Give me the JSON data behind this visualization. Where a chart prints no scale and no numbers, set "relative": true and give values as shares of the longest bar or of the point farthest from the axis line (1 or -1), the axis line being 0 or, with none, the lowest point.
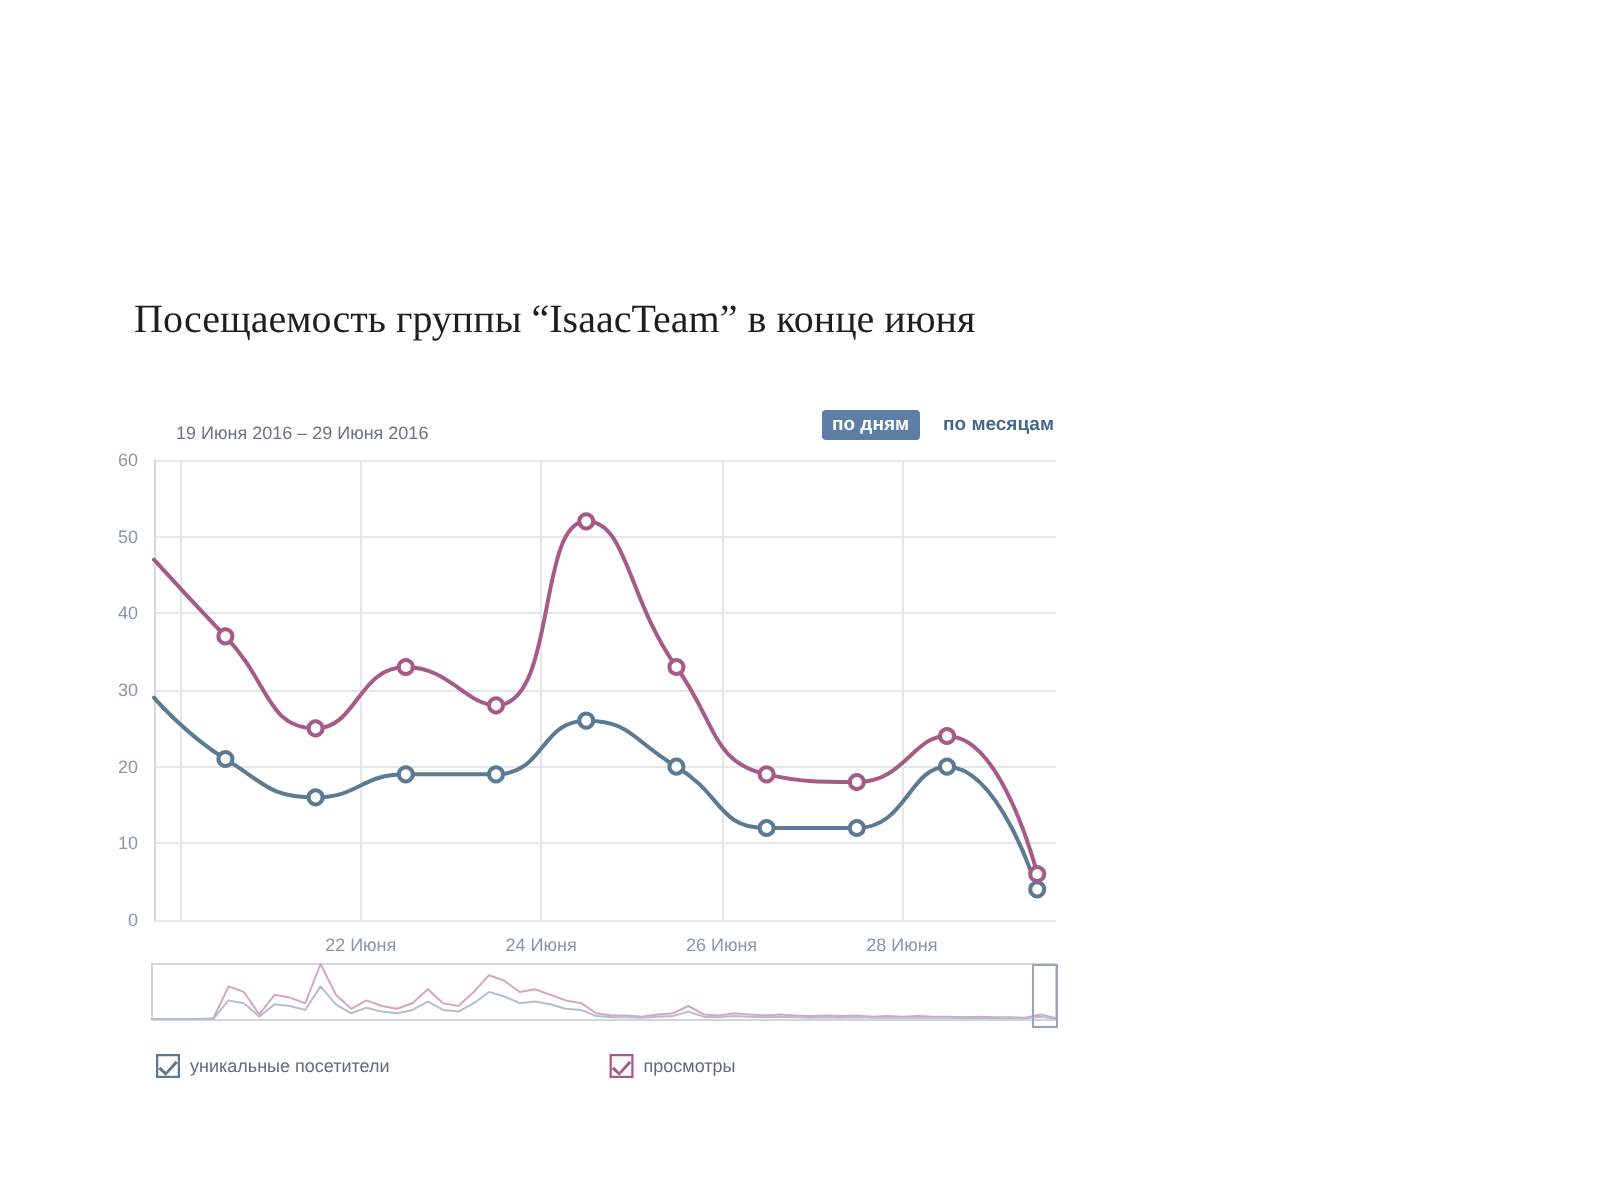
{
  "chart_data": [
    {
      "type": "line",
      "title": "Посещаемость группы “IsaacTeam” в конце июня",
      "subtitle": "19 Июня 2016 – 29 Июня 2016",
      "annotations": [
        "по дням",
        "по месяцам"
      ],
      "x": [
        "2016-06-19T17:00",
        "2016-06-20T12:00",
        "2016-06-21T12:00",
        "2016-06-22T12:00",
        "2016-06-23T12:00",
        "2016-06-24T12:00",
        "2016-06-25T12:00",
        "2016-06-26T12:00",
        "2016-06-27T12:00",
        "2016-06-28T12:00",
        "2016-06-29T12:00"
      ],
      "series": [
        {
          "name": "уникальные посетители",
          "color": "#5c7a92",
          "values": [
            29,
            21,
            16,
            19,
            19,
            26,
            20,
            12,
            12,
            20,
            4
          ]
        },
        {
          "name": "просмотры",
          "color": "#a65b87",
          "values": [
            47,
            37,
            25,
            33,
            28,
            52,
            33,
            19,
            18,
            24,
            6
          ]
        }
      ],
      "xlim": [
        "2016-06-19T17:00",
        "2016-06-29T17:00"
      ],
      "xticks": [
        {
          "value": "2016-06-20",
          "label": null
        },
        {
          "value": "2016-06-22",
          "label": "22 Июня"
        },
        {
          "value": "2016-06-24",
          "label": "24 Июня"
        },
        {
          "value": "2016-06-26",
          "label": "26 Июня"
        },
        {
          "value": "2016-06-28",
          "label": "28 Июня"
        }
      ],
      "ylim": [
        0,
        60
      ],
      "yticks": [
        0,
        10,
        20,
        30,
        40,
        50,
        60
      ],
      "grid": true,
      "legend": "bottom",
      "marker": "circle"
    },
    {
      "type": "line",
      "relative": true,
      "categories": [
        null,
        null,
        null,
        null,
        null,
        null,
        null,
        null,
        null,
        null,
        null,
        null,
        null,
        null,
        null,
        null,
        null,
        null,
        null,
        null,
        null,
        null,
        null,
        null,
        null,
        null,
        null,
        null,
        null,
        null,
        null,
        null,
        null,
        null,
        null,
        null,
        null,
        null,
        null,
        null,
        null,
        null,
        null,
        null,
        null,
        null,
        null,
        null,
        null,
        null,
        null,
        null,
        null,
        null,
        null,
        null,
        null,
        null,
        null,
        null
      ],
      "series": [
        {
          "color": "#d6a6be",
          "values": [
            0.02,
            0.02,
            0.02,
            0.02,
            0.03,
            0.6,
            0.5,
            0.1,
            0.45,
            0.4,
            0.3,
            1,
            0.45,
            0.2,
            0.35,
            0.25,
            0.2,
            0.3,
            0.55,
            0.3,
            0.25,
            0.5,
            0.8,
            0.7,
            0.5,
            0.55,
            0.45,
            0.35,
            0.3,
            0.12,
            0.08,
            0.08,
            0.06,
            0.1,
            0.12,
            0.25,
            0.1,
            0.08,
            0.12,
            0.1,
            0.08,
            0.1,
            0.08,
            0.07,
            0.08,
            0.07,
            0.08,
            0.06,
            0.07,
            0.06,
            0.07,
            0.06,
            0.06,
            0.05,
            0.06,
            0.05,
            0.05,
            0.04,
            0.1,
            0.03
          ]
        },
        {
          "color": "#b3bfca",
          "values": [
            0.02,
            0.02,
            0.02,
            0.02,
            0.02,
            0.35,
            0.3,
            0.06,
            0.28,
            0.25,
            0.18,
            0.6,
            0.28,
            0.12,
            0.22,
            0.15,
            0.12,
            0.18,
            0.33,
            0.18,
            0.15,
            0.3,
            0.5,
            0.42,
            0.3,
            0.33,
            0.28,
            0.2,
            0.18,
            0.07,
            0.05,
            0.05,
            0.04,
            0.06,
            0.07,
            0.15,
            0.06,
            0.05,
            0.07,
            0.06,
            0.05,
            0.06,
            0.05,
            0.04,
            0.05,
            0.04,
            0.05,
            0.04,
            0.04,
            0.04,
            0.04,
            0.04,
            0.04,
            0.03,
            0.04,
            0.03,
            0.03,
            0.03,
            0.06,
            0.02
          ]
        }
      ]
    }
  ]
}
